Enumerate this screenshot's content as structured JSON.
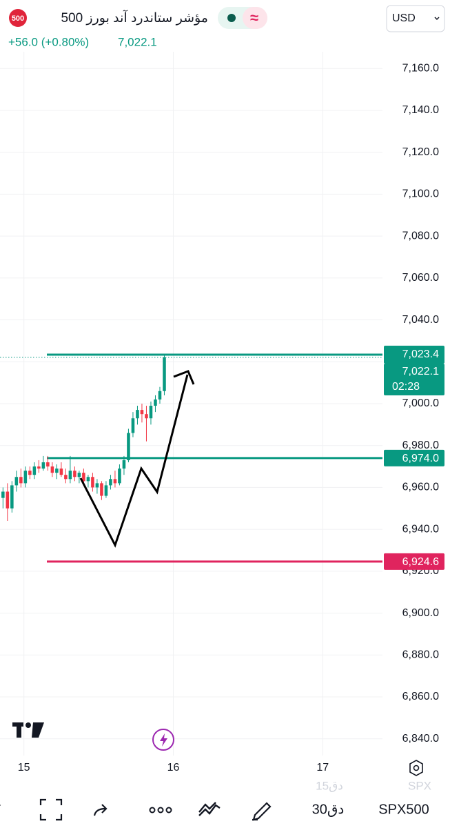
{
  "header": {
    "badge": "500",
    "title": "مؤشر ستاندرد آند بورز 500",
    "currency": "USD",
    "change": "+56.0 (+0.80%)",
    "last": "7,022.1"
  },
  "chart_data": {
    "type": "candlestick",
    "up_color": "#089981",
    "down_color": "#f23645",
    "grid": true,
    "xlim": [
      14.84,
      17.4
    ],
    "xticks": [
      15,
      16,
      17
    ],
    "ylim": [
      6832,
      7168
    ],
    "yticks": [
      {
        "value": 6840,
        "label": "6,840.0"
      },
      {
        "value": 6860,
        "label": "6,860.0"
      },
      {
        "value": 6880,
        "label": "6,880.0"
      },
      {
        "value": 6900,
        "label": "6,900.0"
      },
      {
        "value": 6920,
        "label": "6,920.0"
      },
      {
        "value": 6940,
        "label": "6,940.0"
      },
      {
        "value": 6960,
        "label": "6,960.0"
      },
      {
        "value": 6980,
        "label": "6,980.0"
      },
      {
        "value": 7000,
        "label": "7,000.0"
      },
      {
        "value": 7020,
        "label": "7,020.0"
      },
      {
        "value": 7040,
        "label": "7,040.0"
      },
      {
        "value": 7060,
        "label": "7,060.0"
      },
      {
        "value": 7080,
        "label": "7,080.0"
      },
      {
        "value": 7100,
        "label": "7,100.0"
      },
      {
        "value": 7120,
        "label": "7,120.0"
      },
      {
        "value": 7140,
        "label": "7,140.0"
      },
      {
        "value": 7160,
        "label": "7,160.0"
      }
    ],
    "x": [
      14.86,
      14.89,
      14.92,
      14.95,
      14.98,
      15.01,
      15.04,
      15.07,
      15.1,
      15.13,
      15.16,
      15.19,
      15.22,
      15.25,
      15.28,
      15.31,
      15.34,
      15.37,
      15.4,
      15.43,
      15.46,
      15.49,
      15.52,
      15.55,
      15.58,
      15.61,
      15.64,
      15.67,
      15.7,
      15.73,
      15.76,
      15.79,
      15.82,
      15.85,
      15.88,
      15.91,
      15.94
    ],
    "open": [
      6955,
      6958,
      6950,
      6961,
      6965,
      6962,
      6968,
      6966,
      6970,
      6969,
      6972,
      6970,
      6967,
      6969,
      6966,
      6964,
      6968,
      6965,
      6967,
      6963,
      6965,
      6960,
      6962,
      6956,
      6961,
      6964,
      6962,
      6969,
      6973,
      6986,
      6993,
      6997,
      6995,
      6993,
      6999,
      7002,
      7006
    ],
    "high": [
      6960,
      6962,
      6963,
      6968,
      6969,
      6970,
      6970,
      6972,
      6973,
      6975,
      6975,
      6972,
      6971,
      6972,
      6969,
      6975,
      6970,
      6968,
      6969,
      6966,
      6967,
      6964,
      6963,
      6963,
      6966,
      6968,
      6971,
      6975,
      6988,
      6996,
      6999,
      7000,
      6999,
      7001,
      7004,
      7008,
      7023.4
    ],
    "low": [
      6950,
      6944,
      6948,
      6958,
      6960,
      6960,
      6964,
      6964,
      6967,
      6968,
      6968,
      6965,
      6964,
      6965,
      6962,
      6962,
      6963,
      6962,
      6961,
      6960,
      6958,
      6957,
      6954,
      6955,
      6959,
      6960,
      6961,
      6966,
      6972,
      6984,
      6990,
      6991,
      6982,
      6990,
      6996,
      7000,
      7004
    ],
    "close": [
      6958,
      6950,
      6961,
      6965,
      6962,
      6968,
      6966,
      6970,
      6969,
      6972,
      6970,
      6967,
      6969,
      6966,
      6964,
      6968,
      6965,
      6967,
      6963,
      6965,
      6960,
      6962,
      6956,
      6961,
      6964,
      6962,
      6969,
      6973,
      6986,
      6993,
      6997,
      6995,
      6993,
      6999,
      7002,
      7006,
      7022.1
    ],
    "price_lines": [
      {
        "value": 7023.4,
        "label": "7,023.4",
        "color": "#089981"
      },
      {
        "value": 6974.0,
        "label": "6,974.0",
        "color": "#089981"
      },
      {
        "value": 6924.6,
        "label": "6,924.6",
        "color": "#e0245e"
      }
    ],
    "current": {
      "value": 7022.1,
      "label": "7,022.1",
      "countdown": "02:28",
      "color": "#089981"
    }
  },
  "toolbar": {
    "ghost_interval": "15دق",
    "ghost_symbol": "SPX",
    "interval": "30دق",
    "symbol": "SPX500"
  }
}
